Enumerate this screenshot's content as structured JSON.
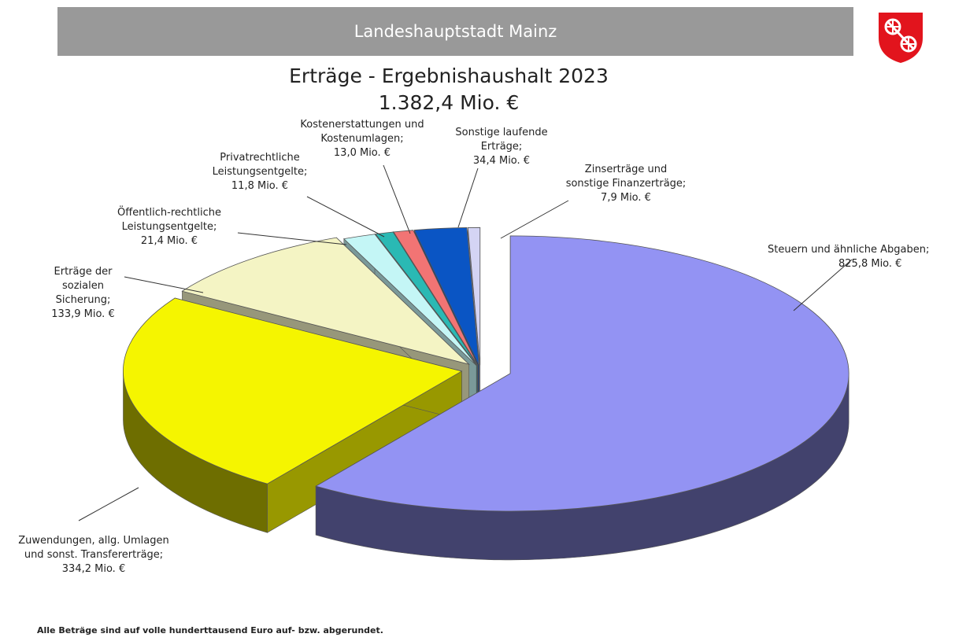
{
  "header": {
    "title": "Landeshauptstadt Mainz"
  },
  "colors": {
    "header_bg": "#999999",
    "crest_red": "#e2141d"
  },
  "icons": {
    "crest": "mainz-coat-of-arms-icon"
  },
  "chart_data": {
    "type": "pie",
    "title": "Erträge - Ergebnishaushalt 2023",
    "subtitle": "1.382,4 Mio. €",
    "unit": "Mio. €",
    "three_d": true,
    "exploded": true,
    "slices": [
      {
        "name": "Steuern und ähnliche Abgaben",
        "value": 825.8,
        "color": "#9393f3",
        "label_lines": [
          "Steuern und ähnliche Abgaben;",
          "825,8 Mio. €"
        ]
      },
      {
        "name": "Zuwendungen, allg. Umlagen und sonst. Transfererträge",
        "value": 334.2,
        "color": "#f5f500",
        "label_lines": [
          "Zuwendungen, allg. Umlagen",
          "und sonst. Transfererträge;",
          "334,2  Mio. €"
        ]
      },
      {
        "name": "Erträge der sozialen Sicherung",
        "value": 133.9,
        "color": "#f4f4c4",
        "label_lines": [
          "Erträge der",
          "sozialen",
          "Sicherung;",
          "133,9 Mio. €"
        ]
      },
      {
        "name": "Öffentlich-rechtliche Leistungsentgelte",
        "value": 21.4,
        "color": "#c4f6f6",
        "label_lines": [
          "Öffentlich-rechtliche",
          "Leistungsentgelte;",
          "21,4 Mio. €"
        ]
      },
      {
        "name": "Privatrechtliche Leistungsentgelte",
        "value": 11.8,
        "color": "#2ab9b4",
        "label_lines": [
          "Privatrechtliche",
          "Leistungsentgelte;",
          "11,8 Mio. €"
        ]
      },
      {
        "name": "Kostenerstattungen und Kostenumlagen",
        "value": 13.0,
        "color": "#f27474",
        "label_lines": [
          "Kostenerstattungen und",
          "Kostenumlagen;",
          "13,0 Mio. €"
        ]
      },
      {
        "name": "Sonstige laufende Erträge",
        "value": 34.4,
        "color": "#0a55c4",
        "label_lines": [
          "Sonstige laufende",
          "Erträge;",
          "34,4 Mio. €"
        ]
      },
      {
        "name": "Zinserträge und sonstige Finanzerträge",
        "value": 7.9,
        "color": "#d4d4f4",
        "label_lines": [
          "Zinserträge und",
          "sonstige Finanzerträge;",
          "7,9 Mio. €"
        ]
      }
    ]
  },
  "footnote": "Alle Beträge sind auf volle hunderttausend Euro auf- bzw. abgerundet."
}
